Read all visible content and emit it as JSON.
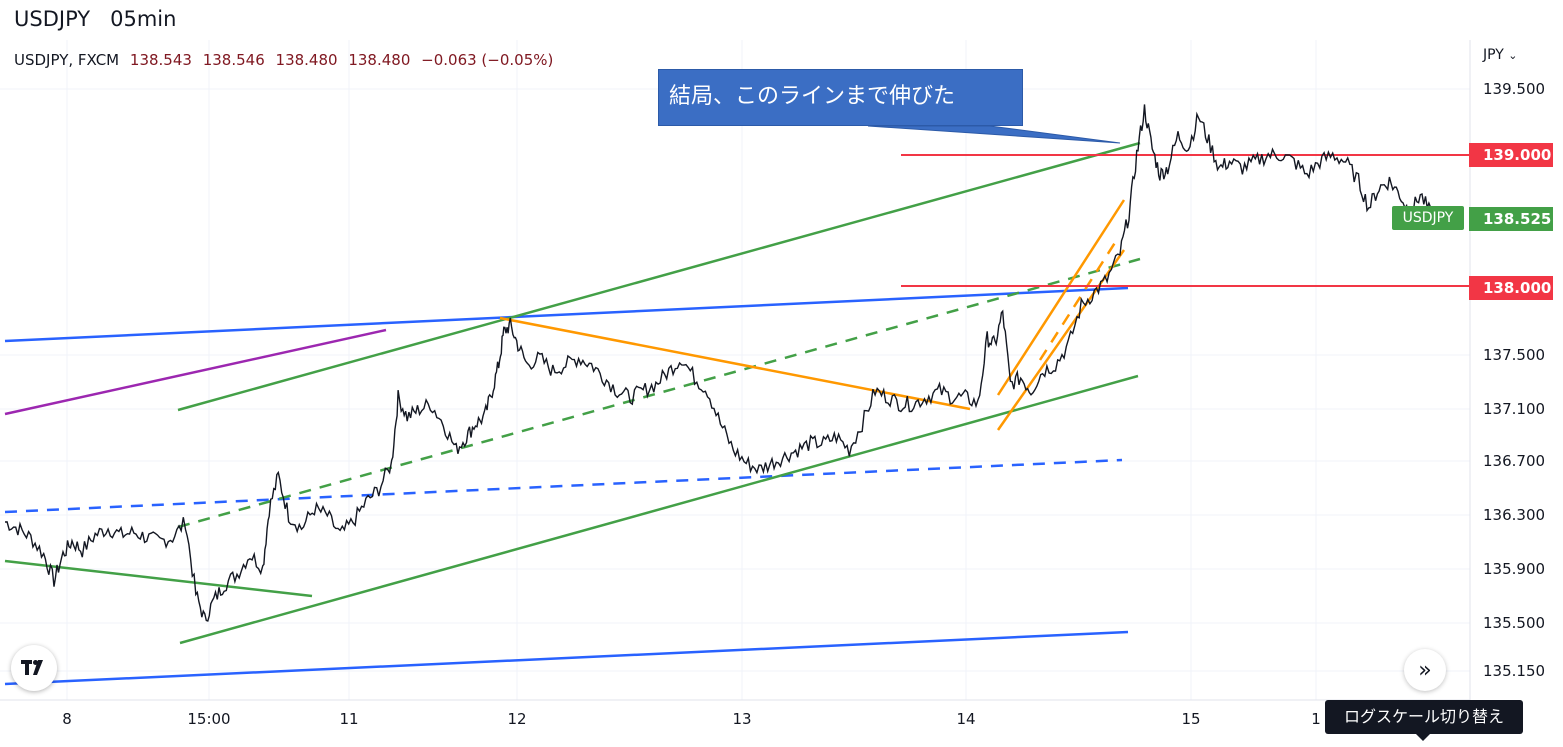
{
  "header": {
    "title": "USDJPY   05min",
    "symbol_line": "USDJPY, FXCM",
    "open": "138.543",
    "high": "138.546",
    "low": "138.480",
    "close": "138.480",
    "change": "−0.063 (−0.05%)"
  },
  "price_axis": {
    "currency_label": "JPY",
    "currency_icon": "chevron-down-icon"
  },
  "annotation": {
    "callout_text": "結局、このラインまで伸びた"
  },
  "level_tags": [
    {
      "label": "139.000",
      "color": "#f23645"
    },
    {
      "label": "138.525",
      "color": "#43a047"
    },
    {
      "label": "138.000",
      "color": "#f23645"
    }
  ],
  "series_tag": "USDJPY",
  "controls": {
    "logo_icon": "tradingview-logo-icon",
    "scroll_icon": "double-chevron-right-icon",
    "tooltip": "ログスケール切り替え"
  },
  "colors": {
    "candles": "#131722",
    "green_line": "#43a047",
    "blue_line": "#2962ff",
    "orange_line": "#ff9800",
    "purple_line": "#9c27b0",
    "red_line": "#f23645",
    "callout_bg": "#3b6ec4"
  },
  "chart_data": {
    "type": "line",
    "title": "USDJPY   05min",
    "xlabel": "",
    "ylabel": "",
    "x_ticks": [
      "8",
      "15:00",
      "11",
      "12",
      "13",
      "14",
      "15",
      "1"
    ],
    "y_ticks": [
      "139.500",
      "137.500",
      "137.100",
      "136.700",
      "136.300",
      "135.900",
      "135.500",
      "135.150"
    ],
    "ylim": [
      135.0,
      139.9
    ],
    "grid": true,
    "series": [
      {
        "name": "USDJPY",
        "points": [
          [
            0.0,
            136.2
          ],
          [
            0.1,
            136.15
          ],
          [
            0.2,
            136.08
          ],
          [
            0.3,
            135.95
          ],
          [
            0.38,
            135.75
          ],
          [
            0.45,
            135.95
          ],
          [
            0.52,
            136.05
          ],
          [
            0.6,
            135.98
          ],
          [
            0.7,
            136.1
          ],
          [
            0.8,
            136.15
          ],
          [
            0.9,
            136.1
          ],
          [
            1.0,
            136.12
          ],
          [
            1.1,
            136.08
          ],
          [
            1.2,
            136.05
          ],
          [
            1.3,
            136.08
          ],
          [
            1.4,
            136.2
          ],
          [
            1.48,
            135.65
          ],
          [
            1.55,
            135.45
          ],
          [
            1.62,
            135.6
          ],
          [
            1.7,
            135.72
          ],
          [
            1.8,
            135.8
          ],
          [
            1.9,
            135.95
          ],
          [
            2.0,
            135.85
          ],
          [
            2.05,
            136.3
          ],
          [
            2.12,
            136.55
          ],
          [
            2.2,
            136.25
          ],
          [
            2.3,
            136.15
          ],
          [
            2.4,
            136.3
          ],
          [
            2.5,
            136.25
          ],
          [
            2.6,
            136.1
          ],
          [
            2.7,
            136.2
          ],
          [
            2.8,
            136.35
          ],
          [
            2.9,
            136.45
          ],
          [
            3.0,
            136.65
          ],
          [
            3.05,
            137.15
          ],
          [
            3.12,
            137.0
          ],
          [
            3.2,
            137.05
          ],
          [
            3.3,
            137.1
          ],
          [
            3.4,
            136.95
          ],
          [
            3.5,
            136.75
          ],
          [
            3.58,
            136.85
          ],
          [
            3.65,
            136.95
          ],
          [
            3.72,
            137.0
          ],
          [
            3.78,
            137.2
          ],
          [
            3.83,
            137.4
          ],
          [
            3.87,
            137.65
          ],
          [
            3.92,
            137.7
          ],
          [
            3.98,
            137.55
          ],
          [
            4.05,
            137.4
          ],
          [
            4.15,
            137.45
          ],
          [
            4.25,
            137.35
          ],
          [
            4.35,
            137.4
          ],
          [
            4.45,
            137.45
          ],
          [
            4.55,
            137.4
          ],
          [
            4.65,
            137.3
          ],
          [
            4.75,
            137.2
          ],
          [
            4.85,
            137.15
          ],
          [
            4.95,
            137.2
          ],
          [
            5.05,
            137.25
          ],
          [
            5.15,
            137.35
          ],
          [
            5.25,
            137.45
          ],
          [
            5.35,
            137.3
          ],
          [
            5.45,
            137.2
          ],
          [
            5.55,
            136.95
          ],
          [
            5.65,
            136.75
          ],
          [
            5.75,
            136.65
          ],
          [
            5.85,
            136.6
          ],
          [
            5.95,
            136.65
          ],
          [
            6.05,
            136.7
          ],
          [
            6.15,
            136.75
          ],
          [
            6.25,
            136.8
          ],
          [
            6.35,
            136.8
          ],
          [
            6.45,
            136.85
          ],
          [
            6.55,
            136.75
          ],
          [
            6.65,
            136.95
          ],
          [
            6.75,
            137.2
          ],
          [
            6.85,
            137.15
          ],
          [
            6.95,
            137.1
          ],
          [
            7.05,
            137.1
          ],
          [
            7.15,
            137.15
          ],
          [
            7.25,
            137.2
          ],
          [
            7.35,
            137.15
          ],
          [
            7.45,
            137.15
          ],
          [
            7.55,
            137.1
          ],
          [
            7.62,
            137.6
          ],
          [
            7.68,
            137.55
          ],
          [
            7.74,
            137.8
          ],
          [
            7.8,
            137.25
          ],
          [
            7.88,
            137.3
          ],
          [
            7.96,
            137.2
          ],
          [
            8.05,
            137.35
          ],
          [
            8.15,
            137.4
          ],
          [
            8.25,
            137.55
          ],
          [
            8.35,
            137.85
          ],
          [
            8.45,
            137.95
          ],
          [
            8.55,
            138.05
          ],
          [
            8.65,
            138.25
          ],
          [
            8.72,
            138.55
          ],
          [
            8.78,
            139.0
          ],
          [
            8.84,
            139.35
          ],
          [
            8.9,
            139.05
          ],
          [
            8.96,
            138.85
          ],
          [
            9.02,
            138.9
          ],
          [
            9.1,
            139.15
          ],
          [
            9.18,
            139.05
          ],
          [
            9.26,
            139.3
          ],
          [
            9.34,
            139.1
          ],
          [
            9.42,
            138.9
          ],
          [
            9.5,
            138.95
          ],
          [
            9.6,
            138.9
          ],
          [
            9.7,
            138.95
          ],
          [
            9.8,
            139.0
          ],
          [
            9.9,
            139.0
          ],
          [
            10.0,
            138.95
          ],
          [
            10.1,
            138.85
          ],
          [
            10.2,
            138.95
          ],
          [
            10.3,
            139.0
          ],
          [
            10.4,
            138.95
          ],
          [
            10.5,
            138.8
          ],
          [
            10.58,
            138.6
          ],
          [
            10.66,
            138.75
          ],
          [
            10.74,
            138.8
          ],
          [
            10.82,
            138.7
          ],
          [
            10.9,
            138.55
          ],
          [
            10.98,
            138.7
          ],
          [
            11.06,
            138.55
          ],
          [
            11.14,
            138.48
          ]
        ]
      }
    ]
  }
}
